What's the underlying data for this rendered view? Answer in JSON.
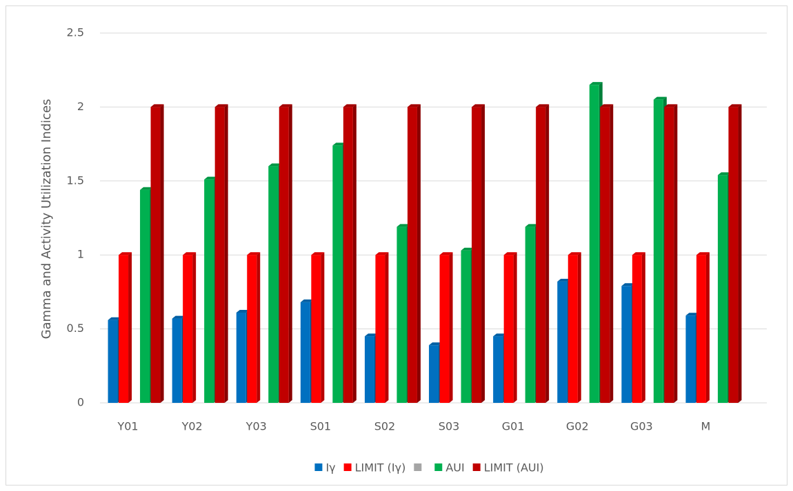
{
  "chart_data": {
    "type": "bar",
    "y_label": "Gamma and Activity Utilization Indices",
    "categories": [
      "Y01",
      "Y02",
      "Y03",
      "S01",
      "S02",
      "S03",
      "G01",
      "G02",
      "G03",
      "M"
    ],
    "series": [
      {
        "name": "Iγ",
        "color": "#0070c0",
        "values": [
          0.56,
          0.57,
          0.61,
          0.68,
          0.45,
          0.39,
          0.45,
          0.82,
          0.79,
          0.59
        ]
      },
      {
        "name": "LIMIT (Iγ)",
        "color": "#ff0000",
        "values": [
          1,
          1,
          1,
          1,
          1,
          1,
          1,
          1,
          1,
          1
        ]
      },
      {
        "name": null,
        "color": "#a5a5a5",
        "values": [
          null,
          null,
          null,
          null,
          null,
          null,
          null,
          null,
          null,
          null
        ]
      },
      {
        "name": "AUI",
        "color": "#00b050",
        "values": [
          1.44,
          1.51,
          1.6,
          1.74,
          1.19,
          1.03,
          1.19,
          2.15,
          2.05,
          1.54
        ]
      },
      {
        "name": "LIMIT (AUI)",
        "color": "#c00000",
        "values": [
          2,
          2,
          2,
          2,
          2,
          2,
          2,
          2,
          2,
          2
        ]
      }
    ],
    "ylim": [
      0,
      2.5
    ],
    "yticks": [
      0,
      0.5,
      1,
      1.5,
      2,
      2.5
    ],
    "grid": true
  }
}
